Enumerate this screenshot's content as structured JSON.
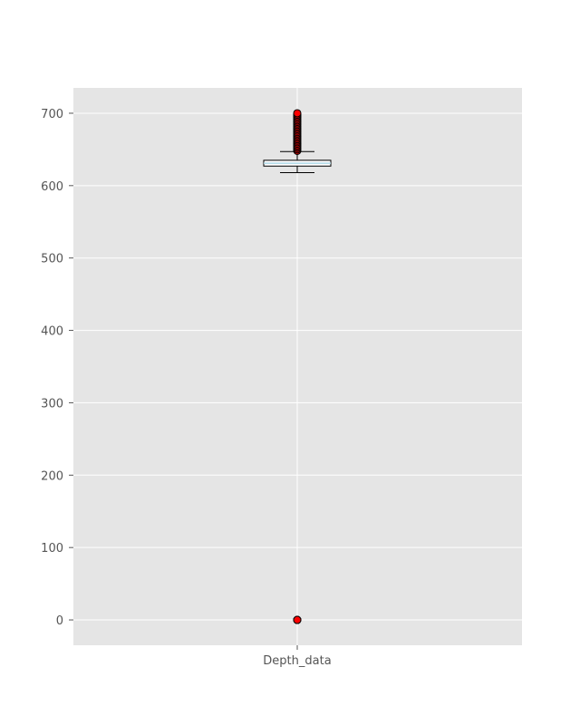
{
  "chart_data": {
    "type": "box",
    "title": "",
    "xlabel": "",
    "ylabel": "",
    "categories": [
      "Depth_data"
    ],
    "ylim": [
      -35,
      735
    ],
    "yticks": [
      0,
      100,
      200,
      300,
      400,
      500,
      600,
      700
    ],
    "grid": true,
    "box": {
      "q1": 627,
      "median": 631,
      "q3": 635,
      "whisker_low": 618,
      "whisker_high": 647
    },
    "outliers": [
      0,
      0,
      0,
      648,
      650,
      652,
      654,
      656,
      658,
      660,
      662,
      664,
      666,
      668,
      670,
      672,
      674,
      676,
      678,
      680,
      682,
      684,
      686,
      688,
      690,
      692,
      694,
      696,
      698,
      700
    ],
    "colors": {
      "background": "#e5e5e5",
      "grid": "#ffffff",
      "box_fill": "#ffffff",
      "box_edge": "#000000",
      "median": "#add8e6",
      "outlier_fill": "#ff0000",
      "outlier_edge": "#000000",
      "tick_text": "#555555"
    }
  }
}
